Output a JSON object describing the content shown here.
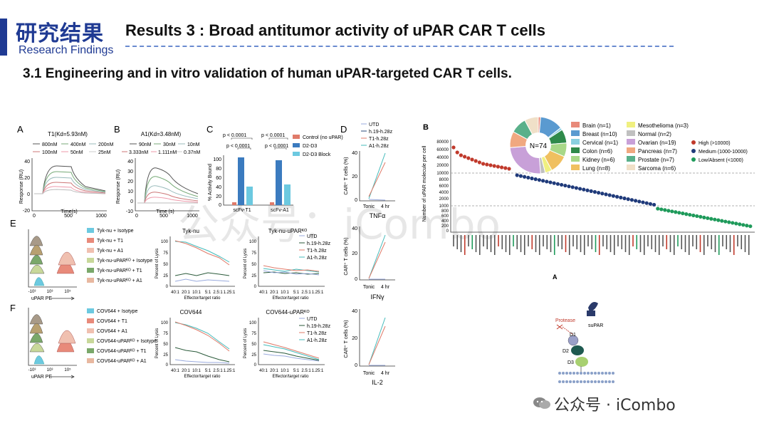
{
  "header": {
    "title_cn": "研究结果",
    "title_en": "Research Findings",
    "results_title": "Results 3 : Broad antitumor activity of uPAR CAR T cells",
    "section_title": "3.1 Engineering and in vitro validation of human uPAR-targeted CAR T cells."
  },
  "watermark": {
    "center": "公众号：iCombo",
    "bottom": "公众号 · iCombo"
  },
  "panels": {
    "A": {
      "letter": "A",
      "title": "T1(Kd=5.93nM)",
      "legend": [
        "800nM",
        "400nM",
        "200nM",
        "100nM",
        "50nM",
        "25nM"
      ],
      "ylabel": "Response (RU)",
      "xlabel": "Time(s)",
      "yticks": [
        "40",
        "20",
        "0",
        "-20"
      ],
      "xticks": [
        "0",
        "500",
        "1000"
      ]
    },
    "B": {
      "letter": "B",
      "title": "A1(Kd=3.48nM)",
      "legend": [
        "90nM",
        "30nM",
        "10nM",
        "3.333nM",
        "1.111nM",
        "0.37nM"
      ],
      "ylabel": "Response (RU)",
      "xlabel": "Time (s)",
      "yticks": [
        "40",
        "30",
        "20",
        "10",
        "0",
        "-10"
      ],
      "xticks": [
        "0",
        "500",
        "1000"
      ]
    },
    "C": {
      "letter": "C",
      "ylabel": "% Activity Bound",
      "yticks": [
        "100",
        "80",
        "60",
        "40",
        "20",
        "0"
      ],
      "categories": [
        "scFv-T1",
        "scFv-A1"
      ],
      "legend": [
        "Control (no uPAR)",
        "D2-D3",
        "D2-D3 Block"
      ],
      "pvals": [
        "p < 0.0001",
        "p < 0.0001",
        "p < 0.0001",
        "p < 0.0001"
      ]
    },
    "D": {
      "letter": "D",
      "legend": [
        "UTD",
        "h.19-h.28z",
        "T1-h.28z",
        "A1-h.28z"
      ],
      "ylabel": "CAR⁺ T cells (%)",
      "xticks": [
        "Tonic",
        "4 hr"
      ],
      "cyto": [
        "TNFα",
        "IFNγ",
        "IL-2"
      ],
      "yticks": [
        "40",
        "20",
        "0"
      ]
    },
    "E": {
      "letter": "E",
      "flow_legend": [
        "Tyk-nu + Isotype",
        "Tyk-nu + T1",
        "Tyk-nu + A1",
        "Tyk-nu-uPARᴷᴼ + Isotype",
        "Tyk-nu-uPARᴷᴼ + T1",
        "Tyk-nu-uPARᴷᴼ + A1"
      ],
      "title1": "Tyk-nu",
      "title2": "Tyk-nu-uPARᴷᴼ",
      "xlabel_flow": "uPAR PE"
    },
    "F": {
      "letter": "F",
      "flow_legend": [
        "COV644 + Isotype",
        "COV644 + T1",
        "COV644 + A1",
        "COV644-uPARᴷᴼ + Isotype",
        "COV644-uPARᴷᴼ + T1",
        "COV644-uPARᴷᴼ + A1"
      ],
      "title1": "COV644",
      "title2": "COV644-uPARᴷᴼ",
      "xlabel_flow": "uPAR PE"
    },
    "lysis": {
      "ylabel": "Percent of Lysis",
      "xlabel": "Effector/target ratio",
      "xticks": [
        "40:1",
        "20:1",
        "10:1",
        "5:1",
        "2.5:1",
        "1.25:1"
      ],
      "yticks": [
        "100",
        "75",
        "50",
        "25",
        "0"
      ],
      "legend": [
        "UTD",
        "h.19-h.28z",
        "T1-h.28z",
        "A1-h.28z"
      ]
    },
    "flow": {
      "xticks": [
        "-10³",
        "10³",
        "10⁵"
      ]
    },
    "Bpanel": {
      "letter": "B",
      "ylabel": "Number of uPAR molecule per cell",
      "pie_center": "N=74",
      "tissue_legend": [
        "Brain (n=1)",
        "Breast (n=10)",
        "Cervical (n=1)",
        "Colon (n=6)",
        "Kidney (n=6)",
        "Lung (n=8)",
        "Mesothelioma (n=3)",
        "Normal (n=2)",
        "Ovarian (n=19)",
        "Pancreas (n=7)",
        "Prostate (n=7)",
        "Sarcoma (n=6)"
      ],
      "expr_legend": [
        "High (>10000)",
        "Medium (1000-10000)",
        "Low/Absent (<1000)"
      ],
      "yticks": [
        "80000",
        "60000",
        "40000",
        "20000",
        "10000",
        "8000",
        "6000",
        "4000",
        "2000",
        "1000",
        "800",
        "600",
        "400",
        "200",
        "0"
      ]
    },
    "Amodel": {
      "letter": "A",
      "labels": [
        "Protease",
        "suPAR",
        "D1",
        "D2",
        "D3"
      ]
    }
  },
  "colors": {
    "brand_blue": "#1f3a93",
    "high": "#c0392b",
    "medium": "#1f3a7a",
    "low": "#1e9a5a",
    "ctrl": "#e07b6a",
    "d2d3": "#3b7bbf",
    "block": "#6cc9e0"
  }
}
